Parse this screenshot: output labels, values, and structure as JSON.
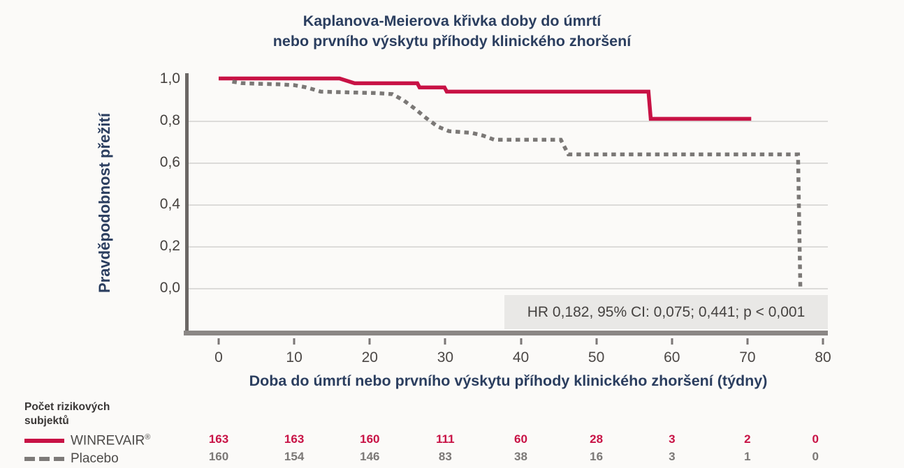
{
  "title": {
    "line1": "Kaplanova-Meierova křivka doby do úmrtí",
    "line2": "nebo prvního výskytu příhody klinického zhoršení"
  },
  "y_axis": {
    "label": "Pravděpodobnost přežití",
    "ticks": [
      {
        "value": 1.0,
        "label": "1,0"
      },
      {
        "value": 0.8,
        "label": "0,8"
      },
      {
        "value": 0.6,
        "label": "0,6"
      },
      {
        "value": 0.4,
        "label": "0,4"
      },
      {
        "value": 0.2,
        "label": "0,2"
      },
      {
        "value": 0.0,
        "label": "0,0"
      }
    ]
  },
  "x_axis": {
    "label": "Doba do úmrtí nebo prvního výskytu příhody klinického zhoršení (týdny)",
    "ticks": [
      {
        "value": 0,
        "label": "0"
      },
      {
        "value": 10,
        "label": "10"
      },
      {
        "value": 20,
        "label": "20"
      },
      {
        "value": 30,
        "label": "30"
      },
      {
        "value": 40,
        "label": "40"
      },
      {
        "value": 50,
        "label": "50"
      },
      {
        "value": 60,
        "label": "60"
      },
      {
        "value": 70,
        "label": "70"
      },
      {
        "value": 80,
        "label": "80"
      }
    ]
  },
  "annotation": {
    "text": "HR 0,182, 95% CI: 0,075; 0,441; p < 0,001"
  },
  "risk_table": {
    "header_line1": "Počet rizikových",
    "header_line2": "subjektů",
    "weeks": [
      0,
      10,
      20,
      30,
      40,
      50,
      60,
      70,
      80
    ],
    "rows": [
      {
        "name": "WINREVAIR",
        "mark": "®",
        "color": "#c81245",
        "values": [
          "163",
          "163",
          "160",
          "111",
          "60",
          "28",
          "3",
          "2",
          "0"
        ]
      },
      {
        "name": "Placebo",
        "color": "#7b7876",
        "values": [
          "160",
          "154",
          "146",
          "83",
          "38",
          "16",
          "3",
          "1",
          "0"
        ]
      }
    ]
  },
  "colors": {
    "winrevair_red": "#c81245",
    "placebo_gray": "#7b7876",
    "heading_navy": "#2b3e5f",
    "axis_gray": "#6b6765",
    "annotation_bg": "#e9e8e6",
    "background": "#fbfaf8"
  },
  "chart_data": {
    "type": "line",
    "subtype": "kaplan-meier-step-curves",
    "title": "Kaplanova-Meierova křivka doby do úmrtí nebo prvního výskytu příhody klinického zhoršení",
    "xlabel": "Doba do úmrtí nebo prvního výskytu příhody klinického zhoršení (týdny)",
    "ylabel": "Pravděpodobnost přežití",
    "xlim": [
      0,
      80
    ],
    "ylim": [
      0.0,
      1.0
    ],
    "x_ticks": [
      0,
      10,
      20,
      30,
      40,
      50,
      60,
      70,
      80
    ],
    "y_ticks": [
      0.0,
      0.2,
      0.4,
      0.6,
      0.8,
      1.0
    ],
    "grid": "horizontal",
    "legend_position": "bottom-left",
    "annotation": "HR 0,182, 95% CI: 0,075; 0,441; p < 0,001",
    "series": [
      {
        "name": "WINREVAIR®",
        "color": "#c81245",
        "style": "solid",
        "points": [
          [
            0,
            1.0
          ],
          [
            16,
            1.0
          ],
          [
            18,
            0.977
          ],
          [
            26.3,
            0.977
          ],
          [
            26.6,
            0.957
          ],
          [
            29.9,
            0.957
          ],
          [
            30.2,
            0.937
          ],
          [
            56.9,
            0.937
          ],
          [
            57.2,
            0.807
          ],
          [
            70.5,
            0.807
          ]
        ]
      },
      {
        "name": "Placebo",
        "color": "#7b7876",
        "style": "dashed",
        "points": [
          [
            1.8,
            0.985
          ],
          [
            3,
            0.978
          ],
          [
            5,
            0.975
          ],
          [
            8,
            0.972
          ],
          [
            10,
            0.968
          ],
          [
            11.5,
            0.958
          ],
          [
            12.5,
            0.948
          ],
          [
            13.5,
            0.937
          ],
          [
            21,
            0.93
          ],
          [
            23,
            0.925
          ],
          [
            24.5,
            0.895
          ],
          [
            26,
            0.855
          ],
          [
            27.5,
            0.81
          ],
          [
            29,
            0.77
          ],
          [
            30.5,
            0.748
          ],
          [
            33.5,
            0.74
          ],
          [
            35,
            0.727
          ],
          [
            36.5,
            0.707
          ],
          [
            45.3,
            0.707
          ],
          [
            46.3,
            0.637
          ],
          [
            76.7,
            0.637
          ],
          [
            77,
            0.0
          ]
        ]
      }
    ],
    "at_risk": {
      "weeks": [
        0,
        10,
        20,
        30,
        40,
        50,
        60,
        70,
        80
      ],
      "winrevair": [
        163,
        163,
        160,
        111,
        60,
        28,
        3,
        2,
        0
      ],
      "placebo": [
        160,
        154,
        146,
        83,
        38,
        16,
        3,
        1,
        0
      ]
    }
  }
}
